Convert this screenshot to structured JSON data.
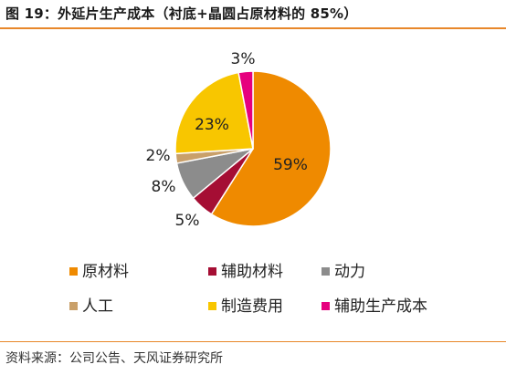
{
  "figure": {
    "title": "图 19：外延片生产成本（衬底+晶圆占原材料的 85%）",
    "source": "资料来源：公司公告、天风证券研究所"
  },
  "colors": {
    "accent_rule": "#e8872a"
  },
  "chart_data": {
    "type": "pie",
    "title": "",
    "unit": "%",
    "start_angle_deg": 0,
    "direction": "clockwise",
    "legend_position": "bottom",
    "slices": [
      {
        "name": "原材料",
        "value": 59,
        "label": "59%",
        "color": "#ef8a00"
      },
      {
        "name": "辅助材料",
        "value": 5,
        "label": "5%",
        "color": "#a50e34"
      },
      {
        "name": "动力",
        "value": 8,
        "label": "8%",
        "color": "#8c8c8c"
      },
      {
        "name": "人工",
        "value": 2,
        "label": "2%",
        "color": "#c9a06a"
      },
      {
        "name": "制造费用",
        "value": 23,
        "label": "23%",
        "color": "#f8c600"
      },
      {
        "name": "辅助生产成本",
        "value": 3,
        "label": "3%",
        "color": "#e6007e"
      }
    ]
  }
}
